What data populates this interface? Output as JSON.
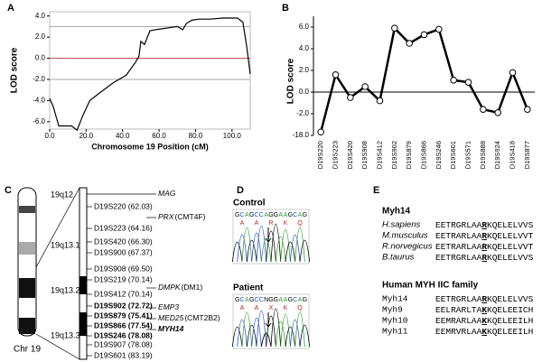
{
  "panel_labels": [
    "A",
    "B",
    "C",
    "D",
    "E"
  ],
  "chart_data": [
    {
      "type": "line",
      "x_label": "Chromosome 19 Position (cM)",
      "y_label": "LOD score",
      "x": [
        0,
        2,
        5,
        8,
        12,
        15,
        18,
        22,
        28,
        35,
        42,
        47,
        49,
        50,
        52,
        55,
        58,
        62,
        66,
        70,
        73,
        75,
        78,
        82,
        88,
        95,
        103,
        106,
        108,
        110
      ],
      "values": [
        -3.8,
        -4.6,
        -6.4,
        -6.4,
        -6.4,
        -6.8,
        -5.5,
        -4.0,
        -3.2,
        -2.3,
        -1.6,
        -0.4,
        0.2,
        1.6,
        1.3,
        2.6,
        2.7,
        2.8,
        2.9,
        3.0,
        2.7,
        3.3,
        3.6,
        3.7,
        3.7,
        3.8,
        3.8,
        3.4,
        1.2,
        -1.5
      ],
      "color": "#000000",
      "xlim": [
        0,
        110
      ],
      "ylim": [
        -6.7,
        4.4
      ],
      "xticks": [
        {
          "value": 0,
          "label": "0.0"
        },
        {
          "value": 20,
          "label": "20.0"
        },
        {
          "value": 40,
          "label": "40.0"
        },
        {
          "value": 60,
          "label": "60.0"
        },
        {
          "value": 80,
          "label": "80.0"
        },
        {
          "value": 100,
          "label": "100.0"
        }
      ],
      "yticks": [
        {
          "value": 4,
          "label": "4.0"
        },
        {
          "value": 2,
          "label": "2.0"
        },
        {
          "value": 0,
          "label": "0.0"
        },
        {
          "value": -2,
          "label": "-2.0"
        },
        {
          "value": -4,
          "label": "-4.0"
        },
        {
          "value": -6,
          "label": "-6.0"
        }
      ],
      "reference_lines": [
        {
          "value": 3,
          "color": "#a6a6a6"
        },
        {
          "value": 0,
          "color": "#c0504d"
        },
        {
          "value": -2,
          "color": "#a6a6a6"
        }
      ],
      "markers": false
    },
    {
      "type": "line",
      "y_label": "LOD score",
      "categories": [
        "D19S220",
        "D19S223",
        "D19S420",
        "D19S908",
        "D19S412",
        "D19S902",
        "D19S879",
        "D19S866",
        "D19S246",
        "D19S601",
        "D19S571",
        "D19S888",
        "D19S924",
        "D19S418",
        "D19S877"
      ],
      "values": [
        -15.5,
        1.6,
        -0.5,
        0.5,
        -0.8,
        5.9,
        4.5,
        5.3,
        5.8,
        1.1,
        0.9,
        -1.6,
        -1.9,
        1.8,
        -1.6
      ],
      "color": "#000000",
      "ylim": [
        -18,
        7
      ],
      "yticks": [
        {
          "value": 6,
          "label": "6.0"
        },
        {
          "value": 4,
          "label": "4.0"
        },
        {
          "value": 2,
          "label": "2.0"
        },
        {
          "value": 0,
          "label": "0.0"
        },
        {
          "value": -2,
          "label": "-2.0"
        },
        {
          "value": -18,
          "label": "-18.0"
        }
      ],
      "markers": true
    }
  ],
  "ideogram": {
    "bands": [
      "19q12",
      "19q13.1",
      "19q13.2",
      "19q13.3"
    ],
    "chromosome": "Chr 19",
    "markers": [
      {
        "label": "D19S220 (62.03)",
        "bold": false
      },
      {
        "label": "D19S223 (64.16)",
        "bold": false
      },
      {
        "label": "D19S420 (66.30)",
        "bold": false
      },
      {
        "label": "D19S900 (67.37)",
        "bold": false
      },
      {
        "label": "D19S908 (69.50)",
        "bold": false
      },
      {
        "label": "D19S219 (70.14)",
        "bold": false
      },
      {
        "label": "D19S412 (70.14)",
        "bold": false
      },
      {
        "label": "D19S902 (72.72)",
        "bold": true
      },
      {
        "label": "D19S879 (75.41)",
        "bold": true
      },
      {
        "label": "D19S866 (77.54)",
        "bold": true
      },
      {
        "label": "D19S246 (78.08)",
        "bold": true
      },
      {
        "label": "D19S907 (78.08)",
        "bold": false
      },
      {
        "label": "D19S601 (83.19)",
        "bold": false
      }
    ],
    "genes": [
      {
        "name": "MAG"
      },
      {
        "name": "PRX",
        "note": "(CMT4F)"
      },
      {
        "name": "DMPK",
        "note": "(DM1)"
      },
      {
        "name": "EMP3"
      },
      {
        "name": "MED25",
        "note": "(CMT2B2)"
      },
      {
        "name": "MYH14",
        "bold": true
      }
    ]
  },
  "chromatograms": [
    {
      "title": "Control",
      "bases": [
        "G",
        "C",
        "A",
        "G",
        "C",
        "C",
        "A",
        "G",
        "G",
        "A",
        "A",
        "G",
        "C",
        "A",
        "G"
      ],
      "amino_acids": [
        "A",
        "A",
        "R",
        "K",
        "Q"
      ]
    },
    {
      "title": "Patient",
      "bases": [
        "G",
        "C",
        "A",
        "G",
        "C",
        "C",
        "N",
        "G",
        "G",
        "A",
        "A",
        "G",
        "C",
        "A",
        "G"
      ],
      "amino_acids": [
        "A",
        "A",
        "X",
        "K",
        "Q"
      ]
    }
  ],
  "alignments": [
    {
      "title": "Myh14",
      "italic": true,
      "rows": [
        {
          "name": "H.sapiens",
          "parts": [
            "EETRGRLAA",
            "R",
            "KQELELVVS"
          ]
        },
        {
          "name": "M.musculus",
          "parts": [
            "EETRARLAA",
            "R",
            "KQELELVVT"
          ]
        },
        {
          "name": "R.norvegicus",
          "parts": [
            "EETRARLAA",
            "R",
            "KQELELVVT"
          ]
        },
        {
          "name": "B.taurus",
          "parts": [
            "EETRGRLAA",
            "R",
            "KQELELVVS"
          ]
        }
      ]
    },
    {
      "title": "Human MYH IIC family",
      "italic": false,
      "rows": [
        {
          "name": "Myh14",
          "parts": [
            "EETRGRLAA",
            "R",
            "KQELELVVS"
          ]
        },
        {
          "name": "Myh9",
          "parts": [
            "EELRARLTA",
            "K",
            "KQELEEICH"
          ]
        },
        {
          "name": "Myh10",
          "parts": [
            "EEMRARLAA",
            "K",
            "KQELEEILH"
          ]
        },
        {
          "name": "Myh11",
          "parts": [
            "EEMRVRLAA",
            "K",
            "KQELEEILH"
          ]
        }
      ]
    }
  ]
}
